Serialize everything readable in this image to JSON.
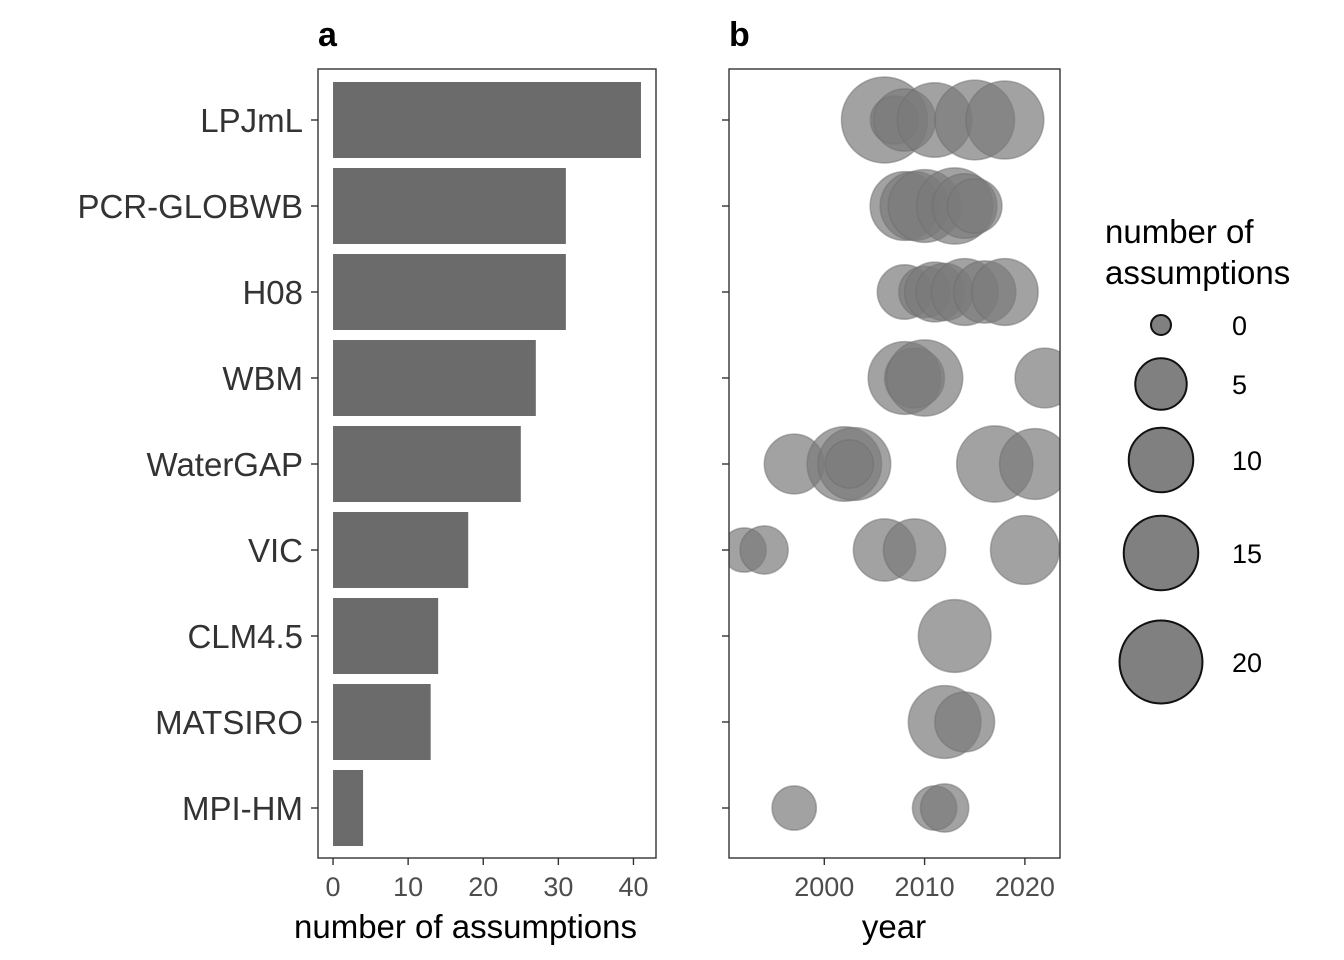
{
  "chart_data": [
    {
      "type": "bar",
      "orientation": "horizontal",
      "panel_label": "a",
      "categories": [
        "LPJmL",
        "PCR-GLOBWB",
        "H08",
        "WBM",
        "WaterGAP",
        "VIC",
        "CLM4.5",
        "MATSIRO",
        "MPI-HM"
      ],
      "values": [
        41,
        31,
        31,
        27,
        25,
        18,
        14,
        13,
        4
      ],
      "xlabel": "number of assumptions",
      "ylabel": "",
      "xlim": [
        -2,
        43
      ],
      "xticks": [
        0,
        10,
        20,
        30,
        40
      ],
      "bar_color": "#6b6b6b",
      "grid": false
    },
    {
      "type": "scatter",
      "panel_label": "b",
      "xlabel": "year",
      "ylabel": "",
      "xlim": [
        1990.5,
        2023.5
      ],
      "xticks": [
        2000,
        2010,
        2020
      ],
      "categories": [
        "LPJmL",
        "PCR-GLOBWB",
        "H08",
        "WBM",
        "WaterGAP",
        "VIC",
        "CLM4.5",
        "MATSIRO",
        "MPI-HM"
      ],
      "point_color": "#7a7a7a",
      "point_opacity": 0.7,
      "points": [
        {
          "model": "LPJmL",
          "year": 2006,
          "n": 22
        },
        {
          "model": "LPJmL",
          "year": 2007,
          "n": 4
        },
        {
          "model": "LPJmL",
          "year": 2008,
          "n": 9
        },
        {
          "model": "LPJmL",
          "year": 2011,
          "n": 15
        },
        {
          "model": "LPJmL",
          "year": 2015,
          "n": 18
        },
        {
          "model": "LPJmL",
          "year": 2018,
          "n": 17
        },
        {
          "model": "PCR-GLOBWB",
          "year": 2008,
          "n": 12
        },
        {
          "model": "PCR-GLOBWB",
          "year": 2009,
          "n": 12
        },
        {
          "model": "PCR-GLOBWB",
          "year": 2010,
          "n": 14
        },
        {
          "model": "PCR-GLOBWB",
          "year": 2013,
          "n": 16
        },
        {
          "model": "PCR-GLOBWB",
          "year": 2014,
          "n": 10
        },
        {
          "model": "PCR-GLOBWB",
          "year": 2015,
          "n": 6
        },
        {
          "model": "H08",
          "year": 2008,
          "n": 6
        },
        {
          "model": "H08",
          "year": 2010,
          "n": 5
        },
        {
          "model": "H08",
          "year": 2011,
          "n": 8
        },
        {
          "model": "H08",
          "year": 2012,
          "n": 7
        },
        {
          "model": "H08",
          "year": 2014,
          "n": 11
        },
        {
          "model": "H08",
          "year": 2016,
          "n": 9
        },
        {
          "model": "H08",
          "year": 2018,
          "n": 11
        },
        {
          "model": "WBM",
          "year": 2008,
          "n": 14
        },
        {
          "model": "WBM",
          "year": 2009,
          "n": 8
        },
        {
          "model": "WBM",
          "year": 2010,
          "n": 16
        },
        {
          "model": "WBM",
          "year": 2022,
          "n": 8
        },
        {
          "model": "WaterGAP",
          "year": 1997,
          "n": 8
        },
        {
          "model": "WaterGAP",
          "year": 2002,
          "n": 15
        },
        {
          "model": "WaterGAP",
          "year": 2003,
          "n": 14
        },
        {
          "model": "WaterGAP",
          "year": 2002.5,
          "n": 4
        },
        {
          "model": "WaterGAP",
          "year": 2017,
          "n": 16
        },
        {
          "model": "WaterGAP",
          "year": 2021,
          "n": 13
        },
        {
          "model": "VIC",
          "year": 1992,
          "n": 3
        },
        {
          "model": "VIC",
          "year": 1994,
          "n": 4
        },
        {
          "model": "VIC",
          "year": 2006,
          "n": 9
        },
        {
          "model": "VIC",
          "year": 2009,
          "n": 9
        },
        {
          "model": "VIC",
          "year": 2020,
          "n": 12
        },
        {
          "model": "CLM4.5",
          "year": 2013,
          "n": 14
        },
        {
          "model": "MATSIRO",
          "year": 2012,
          "n": 14
        },
        {
          "model": "MATSIRO",
          "year": 2014,
          "n": 8
        },
        {
          "model": "MPI-HM",
          "year": 1997,
          "n": 3
        },
        {
          "model": "MPI-HM",
          "year": 2011,
          "n": 3
        },
        {
          "model": "MPI-HM",
          "year": 2012,
          "n": 4
        }
      ],
      "legend": {
        "title": [
          "number of",
          "assumptions"
        ],
        "placement": "right",
        "entries": [
          0,
          5,
          10,
          15,
          20
        ],
        "color": "#4a4a4a"
      }
    }
  ]
}
